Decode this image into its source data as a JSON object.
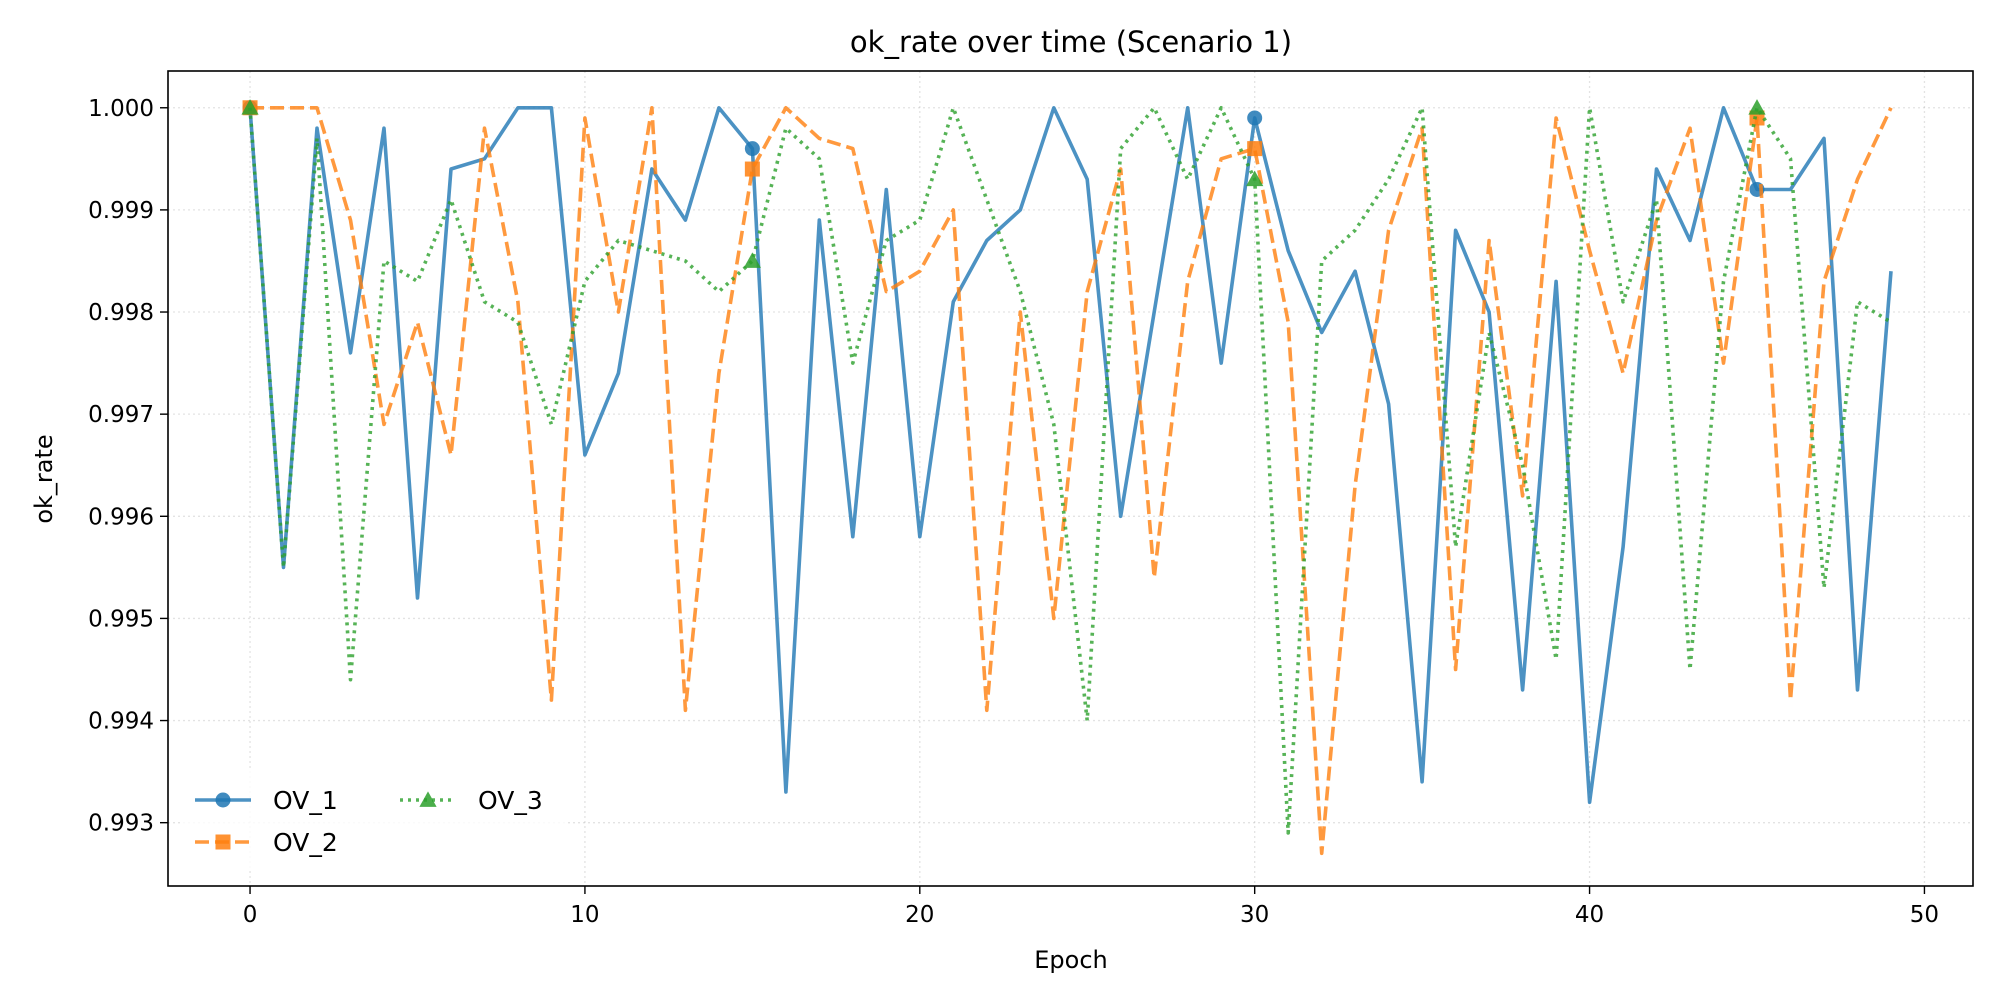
{
  "chart_data": {
    "type": "line",
    "title": "ok_rate over time (Scenario 1)",
    "xlabel": "Epoch",
    "ylabel": "ok_rate",
    "xlim": [
      -2.45,
      51.45
    ],
    "ylim": [
      0.99238,
      1.00036
    ],
    "xticks": [
      0,
      10,
      20,
      30,
      40,
      50
    ],
    "yticks": [
      0.993,
      0.994,
      0.995,
      0.996,
      0.997,
      0.998,
      0.999,
      1.0
    ],
    "ytick_labels": [
      "0.993",
      "0.994",
      "0.995",
      "0.996",
      "0.997",
      "0.998",
      "0.999",
      "1.000"
    ],
    "xtick_labels": [
      "0",
      "10",
      "20",
      "30",
      "40",
      "50"
    ],
    "grid": true,
    "legend_position": "lower-left",
    "x": [
      0,
      1,
      2,
      3,
      4,
      5,
      6,
      7,
      8,
      9,
      10,
      11,
      12,
      13,
      14,
      15,
      16,
      17,
      18,
      19,
      20,
      21,
      22,
      23,
      24,
      25,
      26,
      27,
      28,
      29,
      30,
      31,
      32,
      33,
      34,
      35,
      36,
      37,
      38,
      39,
      40,
      41,
      42,
      43,
      44,
      45,
      46,
      47,
      48,
      49
    ],
    "marker_indices": [
      0,
      15,
      30,
      45
    ],
    "series": [
      {
        "name": "OV_1",
        "color": "#1f77b4",
        "dash": "solid",
        "marker": "circle",
        "values": [
          1.0,
          0.9955,
          0.9998,
          0.9976,
          0.9998,
          0.9952,
          0.9994,
          0.9995,
          1.0,
          1.0,
          0.9966,
          0.9974,
          0.9994,
          0.9989,
          1.0,
          0.9996,
          0.9933,
          0.9989,
          0.9958,
          0.9992,
          0.9958,
          0.9981,
          0.9987,
          0.999,
          1.0,
          0.9993,
          0.996,
          0.998,
          1.0,
          0.9975,
          0.9999,
          0.9986,
          0.9978,
          0.9984,
          0.9971,
          0.9934,
          0.9988,
          0.998,
          0.9943,
          0.9983,
          0.9932,
          0.9957,
          0.9994,
          0.9987,
          1.0,
          0.9992,
          0.9992,
          0.9997,
          0.9943,
          0.9984
        ]
      },
      {
        "name": "OV_2",
        "color": "#ff7f0e",
        "dash": "dashed",
        "marker": "square",
        "values": [
          1.0,
          1.0,
          1.0,
          0.9989,
          0.9969,
          0.9979,
          0.9966,
          0.9998,
          0.9981,
          0.9942,
          0.9999,
          0.998,
          1.0,
          0.9941,
          0.9974,
          0.9994,
          1.0,
          0.9997,
          0.9996,
          0.9982,
          0.9984,
          0.999,
          0.9941,
          0.998,
          0.995,
          0.9982,
          0.9994,
          0.9954,
          0.9983,
          0.9995,
          0.9996,
          0.9979,
          0.9927,
          0.9963,
          0.9988,
          0.9998,
          0.9945,
          0.9987,
          0.9962,
          0.9999,
          0.9986,
          0.9974,
          0.9989,
          0.9998,
          0.9975,
          0.9999,
          0.9942,
          0.9983,
          0.9993,
          1.0
        ]
      },
      {
        "name": "OV_3",
        "color": "#2ca02c",
        "dash": "dotted",
        "marker": "triangle",
        "values": [
          1.0,
          0.9955,
          0.9997,
          0.9944,
          0.9985,
          0.9983,
          0.9991,
          0.9981,
          0.9979,
          0.9969,
          0.9983,
          0.9987,
          0.9986,
          0.9985,
          0.9982,
          0.9985,
          0.9998,
          0.9995,
          0.9975,
          0.9987,
          0.9989,
          1.0,
          0.9991,
          0.9982,
          0.9969,
          0.994,
          0.9996,
          1.0,
          0.9993,
          1.0,
          0.9993,
          0.9929,
          0.9985,
          0.9988,
          0.9993,
          1.0,
          0.9957,
          0.9978,
          0.9965,
          0.9946,
          1.0,
          0.9981,
          0.9991,
          0.9945,
          0.9983,
          1.0,
          0.9995,
          0.9953,
          0.9981,
          0.9979
        ]
      }
    ]
  }
}
